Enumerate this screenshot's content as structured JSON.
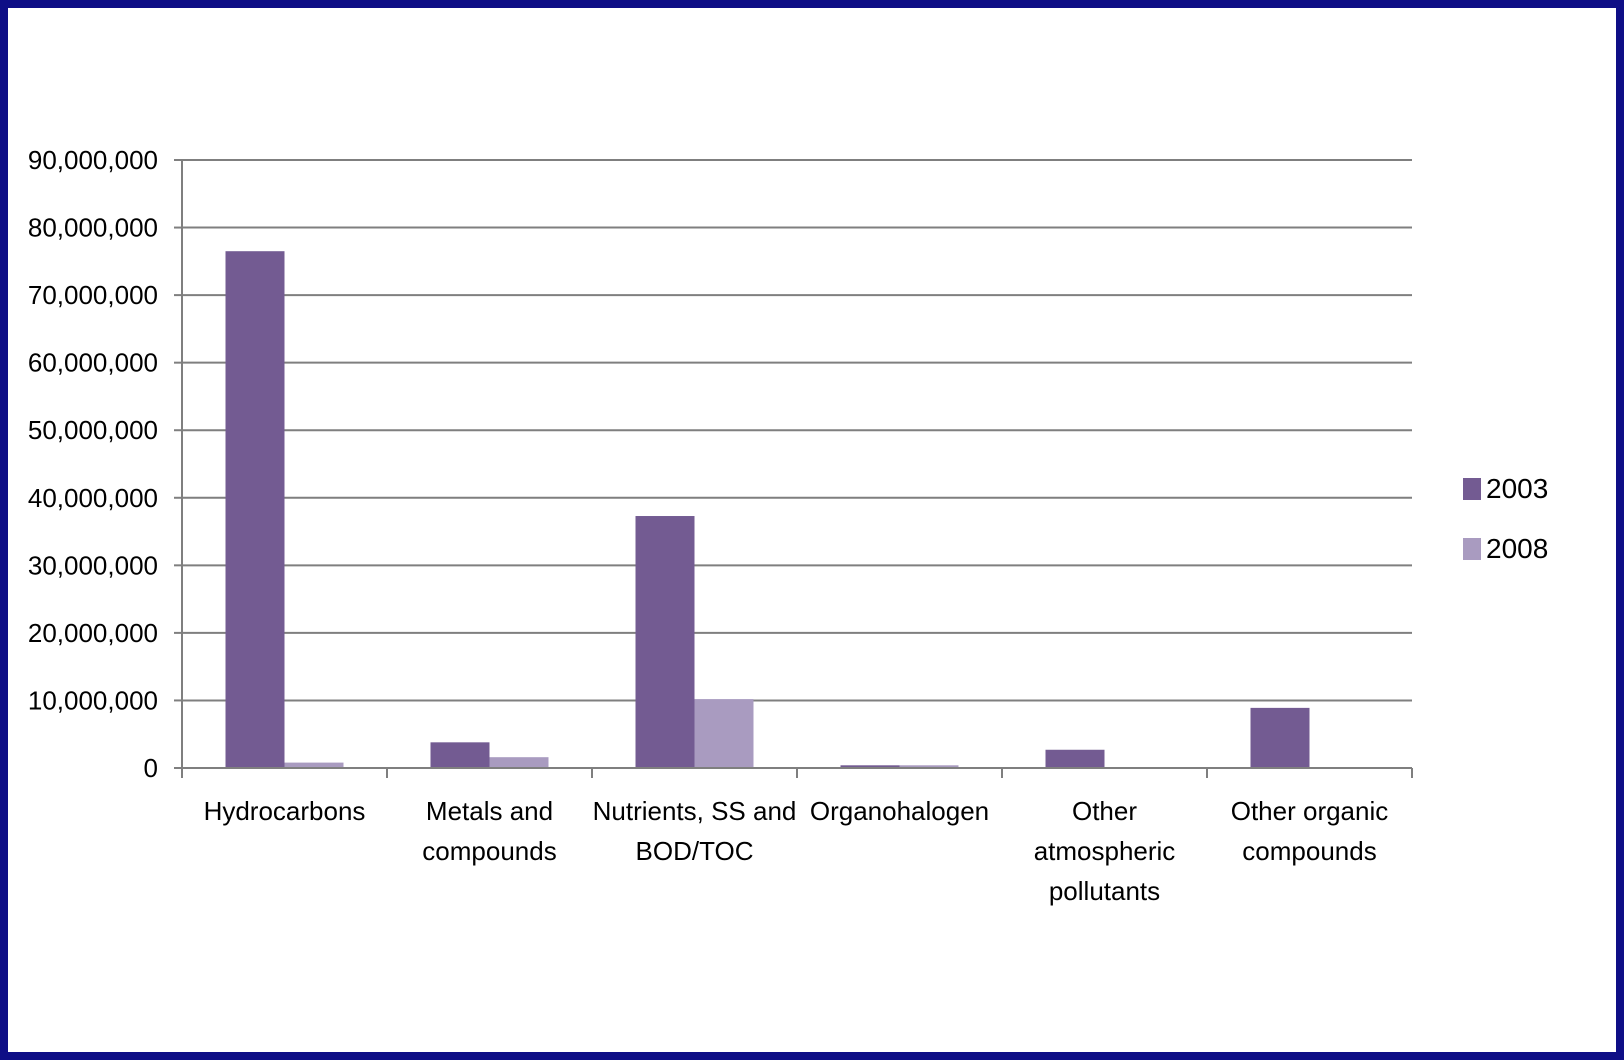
{
  "chart_data": {
    "type": "bar",
    "title": "",
    "xlabel": "",
    "ylabel": "",
    "ylim": [
      0,
      90000000
    ],
    "yticks": [
      0,
      10000000,
      20000000,
      30000000,
      40000000,
      50000000,
      60000000,
      70000000,
      80000000,
      90000000
    ],
    "ytick_labels": [
      "0",
      "10,000,000",
      "20,000,000",
      "30,000,000",
      "40,000,000",
      "50,000,000",
      "60,000,000",
      "70,000,000",
      "80,000,000",
      "90,000,000"
    ],
    "categories": [
      [
        "Hydrocarbons"
      ],
      [
        "Metals and",
        "compounds"
      ],
      [
        "Nutrients, SS and",
        "BOD/TOC"
      ],
      [
        "Organohalogen"
      ],
      [
        "Other",
        "atmospheric",
        "pollutants"
      ],
      [
        "Other organic",
        "compounds"
      ]
    ],
    "series": [
      {
        "name": "2003",
        "color": "#735b92",
        "values": [
          76500000,
          3800000,
          37300000,
          400000,
          2700000,
          8900000
        ]
      },
      {
        "name": "2008",
        "color": "#a99bc0",
        "values": [
          800000,
          1600000,
          10200000,
          400000,
          0,
          0
        ]
      }
    ],
    "grid": true,
    "grid_color": "#7f7f7f",
    "legend_position": "right",
    "background": "#ffffff",
    "frame_color": "#0e0e86"
  }
}
